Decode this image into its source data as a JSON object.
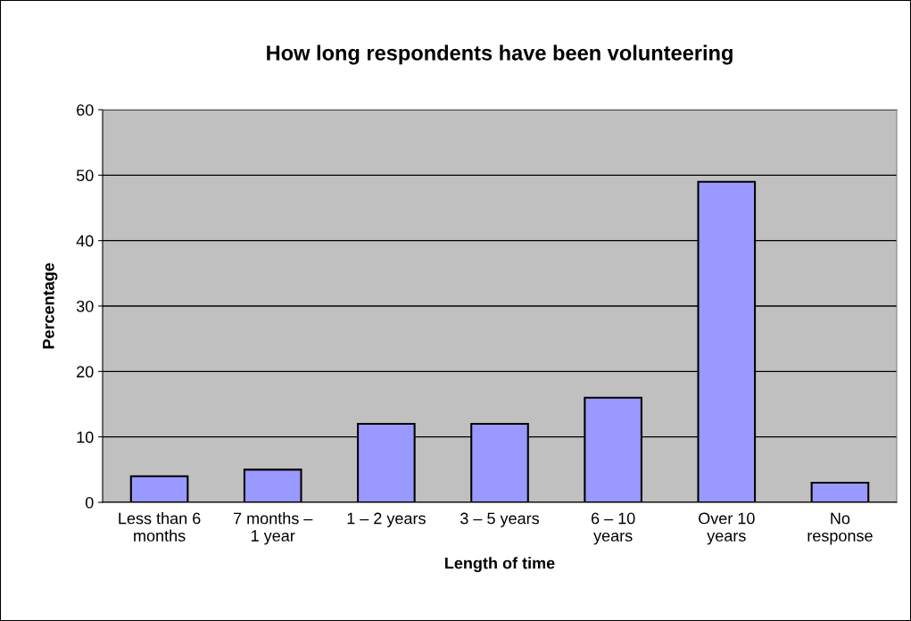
{
  "chart_data": {
    "type": "bar",
    "title": "How long respondents have been volunteering",
    "xlabel": "Length of time",
    "ylabel": "Percentage",
    "categories": [
      "Less than 6\nmonths",
      "7 months –\n1 year",
      "1 – 2 years",
      "3 – 5 years",
      "6 – 10\nyears",
      "Over 10\nyears",
      "No\nresponse"
    ],
    "values": [
      4,
      5,
      12,
      12,
      16,
      49,
      3
    ],
    "color": "#9999ff",
    "ylim": [
      0,
      60
    ],
    "yticks": [
      0,
      10,
      20,
      30,
      40,
      50,
      60
    ],
    "grid": "y",
    "legend": false
  }
}
